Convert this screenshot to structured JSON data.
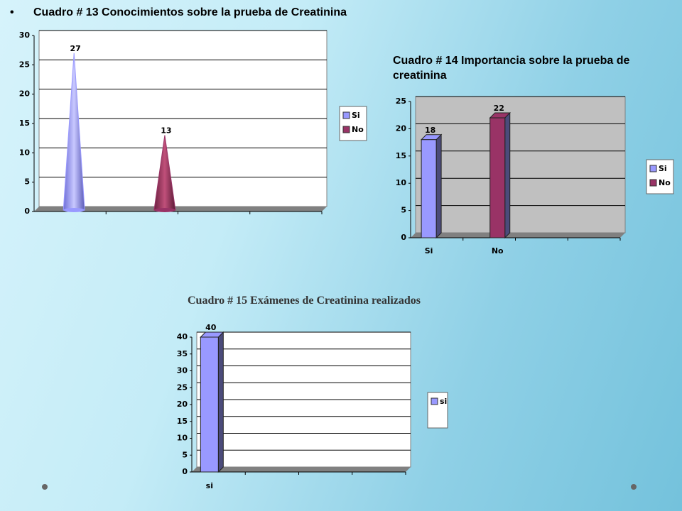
{
  "chart_data": [
    {
      "type": "cone",
      "title": "Cuadro # 13 Conocimientos sobre la prueba de Creatinina",
      "categories": [
        null,
        null
      ],
      "values": [
        27,
        13
      ],
      "colors": [
        "#9999ff",
        "#993366"
      ],
      "legend": [
        "Si",
        "No"
      ],
      "ylim": [
        0,
        30
      ],
      "yticks": [
        0,
        5,
        10,
        15,
        20,
        25,
        30
      ],
      "grid": true
    },
    {
      "type": "bar",
      "title": "Cuadro # 14 Importancia sobre la prueba de creatinina",
      "categories": [
        "Si",
        "No"
      ],
      "values": [
        18,
        22
      ],
      "colors": [
        "#9999ff",
        "#993366"
      ],
      "legend": [
        "Si",
        "No"
      ],
      "ylim": [
        0,
        25
      ],
      "yticks": [
        0,
        5,
        10,
        15,
        20,
        25
      ],
      "grid": true
    },
    {
      "type": "bar",
      "title": "Cuadro # 15 Exámenes de Creatinina realizados",
      "categories": [
        "si"
      ],
      "values": [
        40
      ],
      "colors": [
        "#9999ff"
      ],
      "legend": [
        "si"
      ],
      "ylim": [
        0,
        40
      ],
      "yticks": [
        0,
        5,
        10,
        15,
        20,
        25,
        30,
        35,
        40
      ],
      "grid": true
    }
  ]
}
